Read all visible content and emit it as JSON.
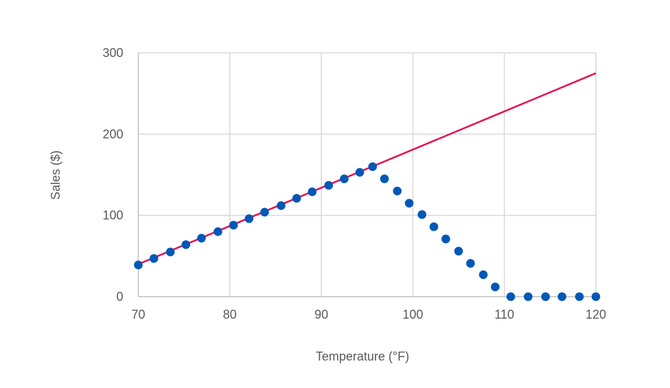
{
  "chart_data": {
    "type": "scatter",
    "title": "",
    "xlabel": "Temperature (°F)",
    "ylabel": "Sales ($)",
    "xlim": [
      70,
      120
    ],
    "ylim": [
      0,
      300
    ],
    "xticks": [
      "70",
      "80",
      "90",
      "100",
      "110",
      "120"
    ],
    "yticks": [
      "0",
      "100",
      "200",
      "300"
    ],
    "grid": true,
    "legend": "none",
    "series": [
      {
        "type": "scatter",
        "color": "#0058B8",
        "points": [
          [
            70.0,
            39
          ],
          [
            71.7,
            47
          ],
          [
            73.5,
            55
          ],
          [
            75.2,
            64
          ],
          [
            76.9,
            72
          ],
          [
            78.7,
            80
          ],
          [
            80.4,
            88
          ],
          [
            82.1,
            96
          ],
          [
            83.8,
            104
          ],
          [
            85.6,
            112
          ],
          [
            87.3,
            121
          ],
          [
            89.0,
            129
          ],
          [
            90.8,
            137
          ],
          [
            92.5,
            145
          ],
          [
            94.2,
            153
          ],
          [
            95.6,
            160
          ],
          [
            96.9,
            145
          ],
          [
            98.3,
            130
          ],
          [
            99.6,
            115
          ],
          [
            101.0,
            101
          ],
          [
            102.3,
            86
          ],
          [
            103.6,
            71
          ],
          [
            105.0,
            56
          ],
          [
            106.3,
            41
          ],
          [
            107.7,
            27
          ],
          [
            109.0,
            12
          ],
          [
            110.7,
            0
          ],
          [
            112.6,
            0
          ],
          [
            114.5,
            0
          ],
          [
            116.3,
            0
          ],
          [
            118.2,
            0
          ],
          [
            120.0,
            0
          ]
        ]
      },
      {
        "type": "line",
        "color": "#E8094F",
        "points": [
          [
            70,
            40
          ],
          [
            120,
            275
          ]
        ]
      }
    ]
  }
}
